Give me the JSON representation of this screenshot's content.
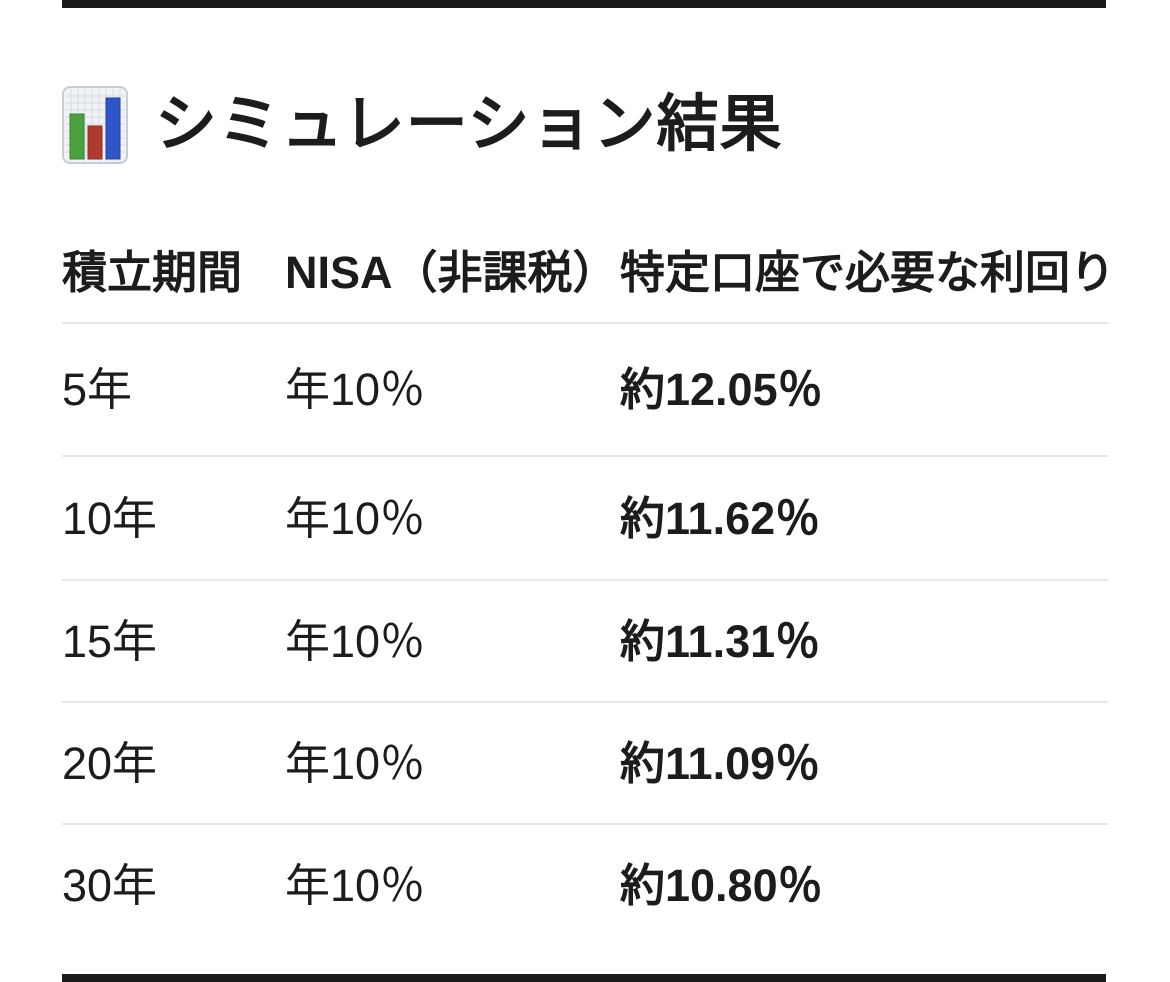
{
  "page": {
    "background_color": "#ffffff",
    "strip_color": "#1a1a1c",
    "text_color": "#1c1c1e",
    "divider_color": "#e6e6e8"
  },
  "header": {
    "icon": "bar-chart-emoji",
    "title": "シミュレーション結果",
    "icon_colors": {
      "paper": "#f0f2f5",
      "grid": "#d5dce5",
      "border": "#c8cdd3",
      "green_bar": "#4ca13f",
      "red_bar": "#b03a2e",
      "blue_bar": "#2e56c9"
    }
  },
  "table": {
    "columns": [
      "積立期間",
      "NISA（非課税）",
      "特定口座で必要な利回り"
    ],
    "rows": [
      {
        "period": "5年",
        "nisa": "年10％",
        "required_yield": "約12.05％"
      },
      {
        "period": "10年",
        "nisa": "年10％",
        "required_yield": "約11.62％"
      },
      {
        "period": "15年",
        "nisa": "年10％",
        "required_yield": "約11.31％"
      },
      {
        "period": "20年",
        "nisa": "年10％",
        "required_yield": "約11.09％"
      },
      {
        "period": "30年",
        "nisa": "年10％",
        "required_yield": "約10.80％"
      }
    ]
  },
  "chart_data": {
    "type": "table",
    "title": "シミュレーション結果",
    "columns": [
      "積立期間",
      "NISA（非課税）",
      "特定口座で必要な利回り"
    ],
    "rows": [
      [
        "5年",
        "年10％",
        "約12.05％"
      ],
      [
        "10年",
        "年10％",
        "約11.62％"
      ],
      [
        "15年",
        "年10％",
        "約11.31％"
      ],
      [
        "20年",
        "年10％",
        "約11.09％"
      ],
      [
        "30年",
        "年10％",
        "約10.80％"
      ]
    ]
  }
}
